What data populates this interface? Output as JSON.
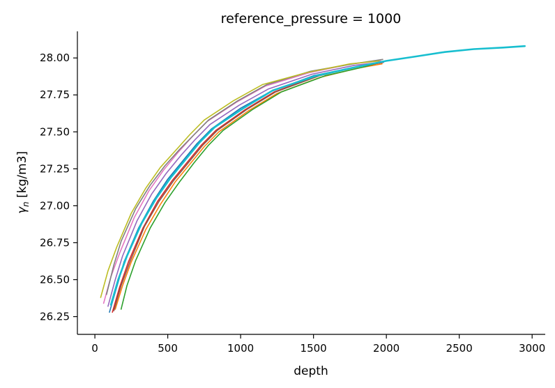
{
  "chart_data": {
    "type": "line",
    "title": "reference_pressure = 1000",
    "xlabel": "depth",
    "ylabel_main": "γ",
    "ylabel_sub": "n",
    "ylabel_unit": " [kg/m3]",
    "xlim": [
      -120,
      3090
    ],
    "ylim": [
      26.13,
      28.18
    ],
    "xticks": [
      0,
      500,
      1000,
      1500,
      2000,
      2500,
      3000
    ],
    "xtick_labels": [
      "0",
      "500",
      "1000",
      "1500",
      "2000",
      "2500",
      "3000"
    ],
    "yticks": [
      26.25,
      26.5,
      26.75,
      27.0,
      27.25,
      27.5,
      27.75,
      28.0
    ],
    "ytick_labels": [
      "26.25",
      "26.50",
      "26.75",
      "27.00",
      "27.25",
      "27.50",
      "27.75",
      "28.00"
    ],
    "grid": false,
    "legend": "none",
    "series_colors": [
      "#1f77b4",
      "#ff7f0e",
      "#2ca02c",
      "#d62728",
      "#9467bd",
      "#8c564b",
      "#e377c2",
      "#7f7f7f",
      "#bcbd22",
      "#17becf"
    ],
    "series": [
      {
        "color": "#1f77b4",
        "x": [
          100,
          150,
          200,
          300,
          400,
          500,
          600,
          700,
          800,
          1000,
          1200,
          1500,
          1800,
          1980
        ],
        "y": [
          26.28,
          26.45,
          26.62,
          26.85,
          27.03,
          27.18,
          27.3,
          27.42,
          27.52,
          27.66,
          27.77,
          27.88,
          27.94,
          27.97
        ]
      },
      {
        "color": "#ff7f0e",
        "x": [
          140,
          190,
          250,
          350,
          450,
          550,
          650,
          750,
          850,
          1050,
          1250,
          1550,
          1800,
          1970
        ],
        "y": [
          26.3,
          26.46,
          26.62,
          26.84,
          27.01,
          27.16,
          27.28,
          27.4,
          27.5,
          27.64,
          27.76,
          27.87,
          27.93,
          27.96
        ]
      },
      {
        "color": "#2ca02c",
        "x": [
          180,
          220,
          280,
          380,
          480,
          580,
          680,
          780,
          880,
          1080,
          1280,
          1580,
          1850,
          1960
        ],
        "y": [
          26.3,
          26.46,
          26.63,
          26.85,
          27.02,
          27.16,
          27.29,
          27.41,
          27.51,
          27.65,
          27.77,
          27.88,
          27.94,
          27.97
        ]
      },
      {
        "color": "#d62728",
        "x": [
          120,
          170,
          230,
          330,
          430,
          530,
          630,
          730,
          830,
          1030,
          1230,
          1530,
          1800,
          1975
        ],
        "y": [
          26.28,
          26.45,
          26.62,
          26.85,
          27.03,
          27.17,
          27.29,
          27.41,
          27.51,
          27.65,
          27.77,
          27.88,
          27.94,
          27.97
        ]
      },
      {
        "color": "#9467bd",
        "x": [
          90,
          140,
          190,
          290,
          390,
          490,
          590,
          690,
          790,
          990,
          1190,
          1490,
          1780,
          1960
        ],
        "y": [
          26.32,
          26.5,
          26.66,
          26.9,
          27.08,
          27.22,
          27.34,
          27.45,
          27.55,
          27.68,
          27.79,
          27.89,
          27.95,
          27.97
        ]
      },
      {
        "color": "#8c564b",
        "x": [
          130,
          180,
          240,
          340,
          440,
          540,
          640,
          740,
          840,
          1040,
          1240,
          1540,
          1800,
          1970
        ],
        "y": [
          26.29,
          26.46,
          26.62,
          26.86,
          27.03,
          27.17,
          27.29,
          27.41,
          27.51,
          27.65,
          27.77,
          27.88,
          27.94,
          27.97
        ]
      },
      {
        "color": "#e377c2",
        "x": [
          60,
          110,
          170,
          270,
          370,
          470,
          570,
          670,
          770,
          970,
          1170,
          1470,
          1760,
          1960
        ],
        "y": [
          26.34,
          26.52,
          26.68,
          26.92,
          27.1,
          27.24,
          27.36,
          27.47,
          27.57,
          27.7,
          27.81,
          27.9,
          27.96,
          27.98
        ]
      },
      {
        "color": "#7f7f7f",
        "x": [
          80,
          130,
          180,
          280,
          380,
          480,
          580,
          680,
          780,
          980,
          1180,
          1480,
          1770,
          1975
        ],
        "y": [
          26.4,
          26.6,
          26.76,
          26.98,
          27.14,
          27.27,
          27.38,
          27.48,
          27.58,
          27.71,
          27.82,
          27.91,
          27.96,
          27.99
        ]
      },
      {
        "color": "#bcbd22",
        "x": [
          40,
          90,
          150,
          250,
          350,
          450,
          550,
          650,
          750,
          950,
          1150,
          1450,
          1750,
          1950
        ],
        "y": [
          26.38,
          26.56,
          26.72,
          26.95,
          27.12,
          27.26,
          27.37,
          27.48,
          27.58,
          27.71,
          27.82,
          27.9,
          27.96,
          27.98
        ]
      },
      {
        "color": "#17becf",
        "x": [
          110,
          160,
          220,
          320,
          420,
          520,
          620,
          720,
          820,
          1020,
          1220,
          1520,
          1800,
          2000,
          2200,
          2400,
          2600,
          2800,
          2950
        ],
        "y": [
          26.33,
          26.5,
          26.66,
          26.88,
          27.05,
          27.19,
          27.31,
          27.43,
          27.53,
          27.66,
          27.78,
          27.88,
          27.94,
          27.98,
          28.01,
          28.04,
          28.06,
          28.07,
          28.08
        ]
      }
    ]
  }
}
